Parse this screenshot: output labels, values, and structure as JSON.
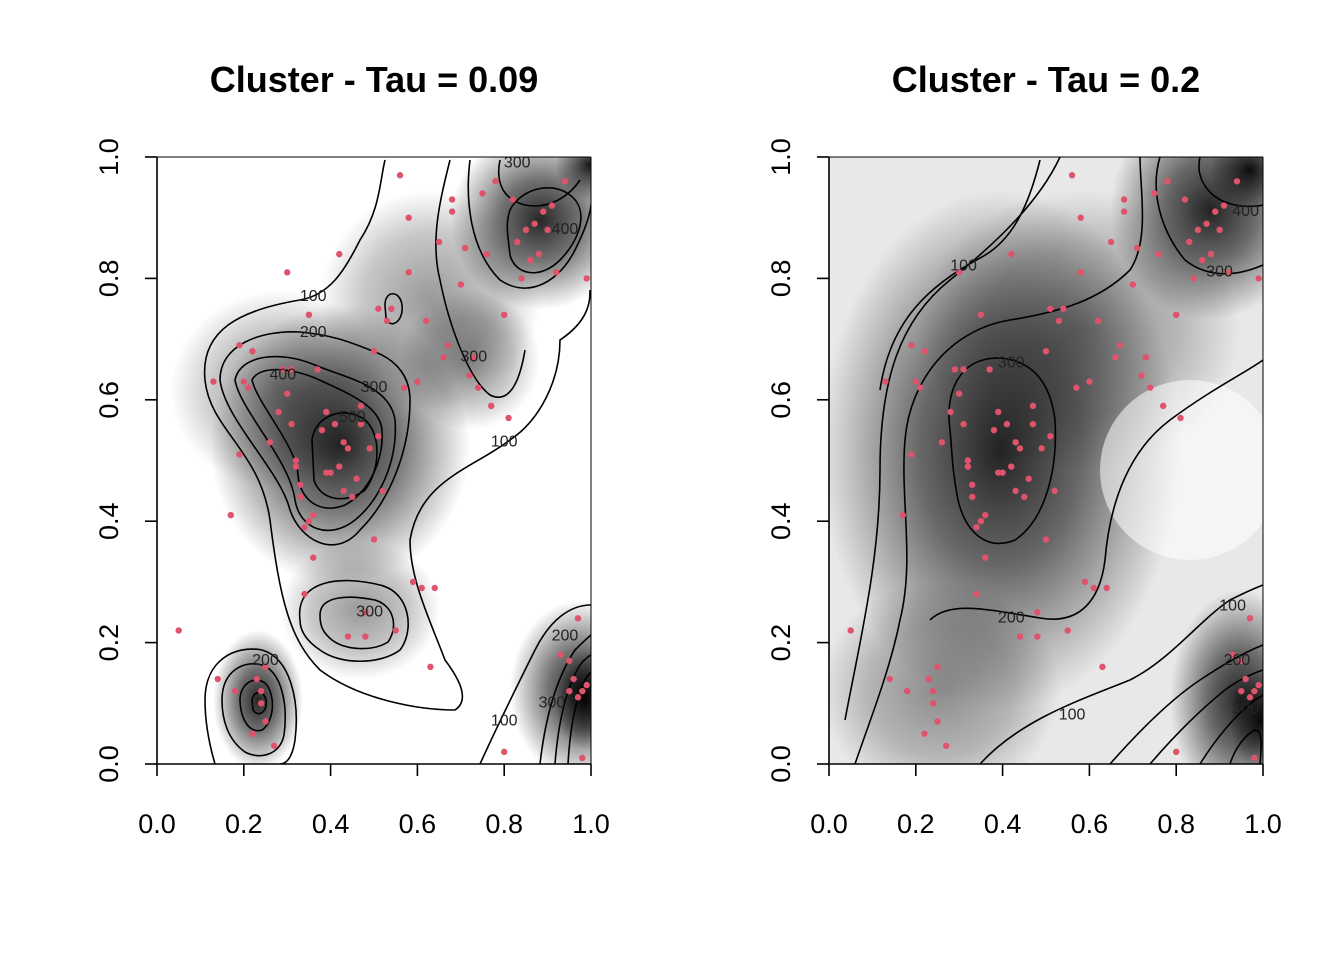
{
  "chart_data": [
    {
      "type": "heatmap",
      "title": "Cluster - Tau = 0.09",
      "xlabel": "",
      "ylabel": "",
      "xlim": [
        0.0,
        1.0
      ],
      "ylim": [
        0.0,
        1.0
      ],
      "x_ticks": [
        "0.0",
        "0.2",
        "0.4",
        "0.6",
        "0.8",
        "1.0"
      ],
      "y_ticks": [
        "0.0",
        "0.2",
        "0.4",
        "0.6",
        "0.8",
        "1.0"
      ],
      "grid": false,
      "colormap": "white-to-black grayscale",
      "point_color": "#df536b",
      "contour_labels": [
        {
          "text": "100",
          "x": 0.36,
          "y": 0.77
        },
        {
          "text": "200",
          "x": 0.36,
          "y": 0.71
        },
        {
          "text": "400",
          "x": 0.29,
          "y": 0.64
        },
        {
          "text": "300",
          "x": 0.5,
          "y": 0.62
        },
        {
          "text": "500",
          "x": 0.45,
          "y": 0.57
        },
        {
          "text": "300",
          "x": 0.73,
          "y": 0.67
        },
        {
          "text": "100",
          "x": 0.8,
          "y": 0.53
        },
        {
          "text": "300",
          "x": 0.83,
          "y": 0.99
        },
        {
          "text": "400",
          "x": 0.94,
          "y": 0.88
        },
        {
          "text": "300",
          "x": 0.49,
          "y": 0.25
        },
        {
          "text": "200",
          "x": 0.25,
          "y": 0.17
        },
        {
          "text": "200",
          "x": 0.94,
          "y": 0.21
        },
        {
          "text": "100",
          "x": 0.8,
          "y": 0.07
        },
        {
          "text": "300",
          "x": 0.91,
          "y": 0.1
        }
      ]
    },
    {
      "type": "heatmap",
      "title": "Cluster - Tau = 0.2",
      "xlabel": "",
      "ylabel": "",
      "xlim": [
        0.0,
        1.0
      ],
      "ylim": [
        0.0,
        1.0
      ],
      "x_ticks": [
        "0.0",
        "0.2",
        "0.4",
        "0.6",
        "0.8",
        "1.0"
      ],
      "y_ticks": [
        "0.0",
        "0.2",
        "0.4",
        "0.6",
        "0.8",
        "1.0"
      ],
      "grid": false,
      "colormap": "white-to-black grayscale",
      "point_color": "#df536b",
      "contour_labels": [
        {
          "text": "100",
          "x": 0.31,
          "y": 0.82
        },
        {
          "text": "300",
          "x": 0.42,
          "y": 0.66
        },
        {
          "text": "200",
          "x": 0.42,
          "y": 0.24
        },
        {
          "text": "100",
          "x": 0.56,
          "y": 0.08
        },
        {
          "text": "300",
          "x": 0.9,
          "y": 0.81
        },
        {
          "text": "400",
          "x": 0.96,
          "y": 0.91
        },
        {
          "text": "100",
          "x": 0.93,
          "y": 0.26
        },
        {
          "text": "200",
          "x": 0.94,
          "y": 0.17
        },
        {
          "text": "300",
          "x": 0.96,
          "y": 0.09
        }
      ]
    }
  ],
  "points": [
    [
      0.05,
      0.22
    ],
    [
      0.13,
      0.63
    ],
    [
      0.14,
      0.14
    ],
    [
      0.17,
      0.41
    ],
    [
      0.18,
      0.12
    ],
    [
      0.19,
      0.69
    ],
    [
      0.19,
      0.51
    ],
    [
      0.2,
      0.63
    ],
    [
      0.21,
      0.62
    ],
    [
      0.22,
      0.68
    ],
    [
      0.22,
      0.05
    ],
    [
      0.23,
      0.14
    ],
    [
      0.24,
      0.1
    ],
    [
      0.24,
      0.12
    ],
    [
      0.25,
      0.16
    ],
    [
      0.25,
      0.07
    ],
    [
      0.26,
      0.53
    ],
    [
      0.27,
      0.03
    ],
    [
      0.28,
      0.58
    ],
    [
      0.29,
      0.65
    ],
    [
      0.3,
      0.81
    ],
    [
      0.3,
      0.61
    ],
    [
      0.31,
      0.56
    ],
    [
      0.31,
      0.65
    ],
    [
      0.32,
      0.5
    ],
    [
      0.32,
      0.49
    ],
    [
      0.33,
      0.46
    ],
    [
      0.33,
      0.44
    ],
    [
      0.34,
      0.39
    ],
    [
      0.34,
      0.28
    ],
    [
      0.35,
      0.4
    ],
    [
      0.35,
      0.74
    ],
    [
      0.36,
      0.41
    ],
    [
      0.36,
      0.34
    ],
    [
      0.37,
      0.65
    ],
    [
      0.38,
      0.55
    ],
    [
      0.39,
      0.48
    ],
    [
      0.39,
      0.58
    ],
    [
      0.4,
      0.48
    ],
    [
      0.41,
      0.56
    ],
    [
      0.42,
      0.49
    ],
    [
      0.42,
      0.84
    ],
    [
      0.43,
      0.53
    ],
    [
      0.43,
      0.45
    ],
    [
      0.44,
      0.52
    ],
    [
      0.44,
      0.21
    ],
    [
      0.45,
      0.44
    ],
    [
      0.46,
      0.47
    ],
    [
      0.47,
      0.56
    ],
    [
      0.47,
      0.59
    ],
    [
      0.48,
      0.25
    ],
    [
      0.48,
      0.21
    ],
    [
      0.49,
      0.52
    ],
    [
      0.5,
      0.37
    ],
    [
      0.5,
      0.68
    ],
    [
      0.51,
      0.54
    ],
    [
      0.51,
      0.75
    ],
    [
      0.52,
      0.45
    ],
    [
      0.53,
      0.73
    ],
    [
      0.54,
      0.75
    ],
    [
      0.55,
      0.22
    ],
    [
      0.56,
      0.97
    ],
    [
      0.57,
      0.62
    ],
    [
      0.58,
      0.9
    ],
    [
      0.58,
      0.81
    ],
    [
      0.59,
      0.3
    ],
    [
      0.6,
      0.63
    ],
    [
      0.61,
      0.29
    ],
    [
      0.62,
      0.73
    ],
    [
      0.63,
      0.16
    ],
    [
      0.64,
      0.29
    ],
    [
      0.65,
      0.86
    ],
    [
      0.66,
      0.67
    ],
    [
      0.67,
      0.69
    ],
    [
      0.68,
      0.93
    ],
    [
      0.68,
      0.91
    ],
    [
      0.7,
      0.79
    ],
    [
      0.71,
      0.85
    ],
    [
      0.72,
      0.64
    ],
    [
      0.73,
      0.67
    ],
    [
      0.74,
      0.62
    ],
    [
      0.75,
      0.94
    ],
    [
      0.76,
      0.84
    ],
    [
      0.77,
      0.59
    ],
    [
      0.78,
      0.96
    ],
    [
      0.8,
      0.74
    ],
    [
      0.8,
      0.02
    ],
    [
      0.81,
      0.57
    ],
    [
      0.82,
      0.93
    ],
    [
      0.83,
      0.86
    ],
    [
      0.84,
      0.8
    ],
    [
      0.85,
      0.88
    ],
    [
      0.86,
      0.83
    ],
    [
      0.87,
      0.89
    ],
    [
      0.88,
      0.84
    ],
    [
      0.89,
      0.91
    ],
    [
      0.9,
      0.88
    ],
    [
      0.91,
      0.92
    ],
    [
      0.92,
      0.81
    ],
    [
      0.93,
      0.18
    ],
    [
      0.94,
      0.96
    ],
    [
      0.95,
      0.17
    ],
    [
      0.95,
      0.12
    ],
    [
      0.96,
      0.14
    ],
    [
      0.97,
      0.24
    ],
    [
      0.97,
      0.11
    ],
    [
      0.98,
      0.12
    ],
    [
      0.98,
      0.01
    ],
    [
      0.99,
      0.13
    ],
    [
      0.99,
      0.8
    ]
  ]
}
